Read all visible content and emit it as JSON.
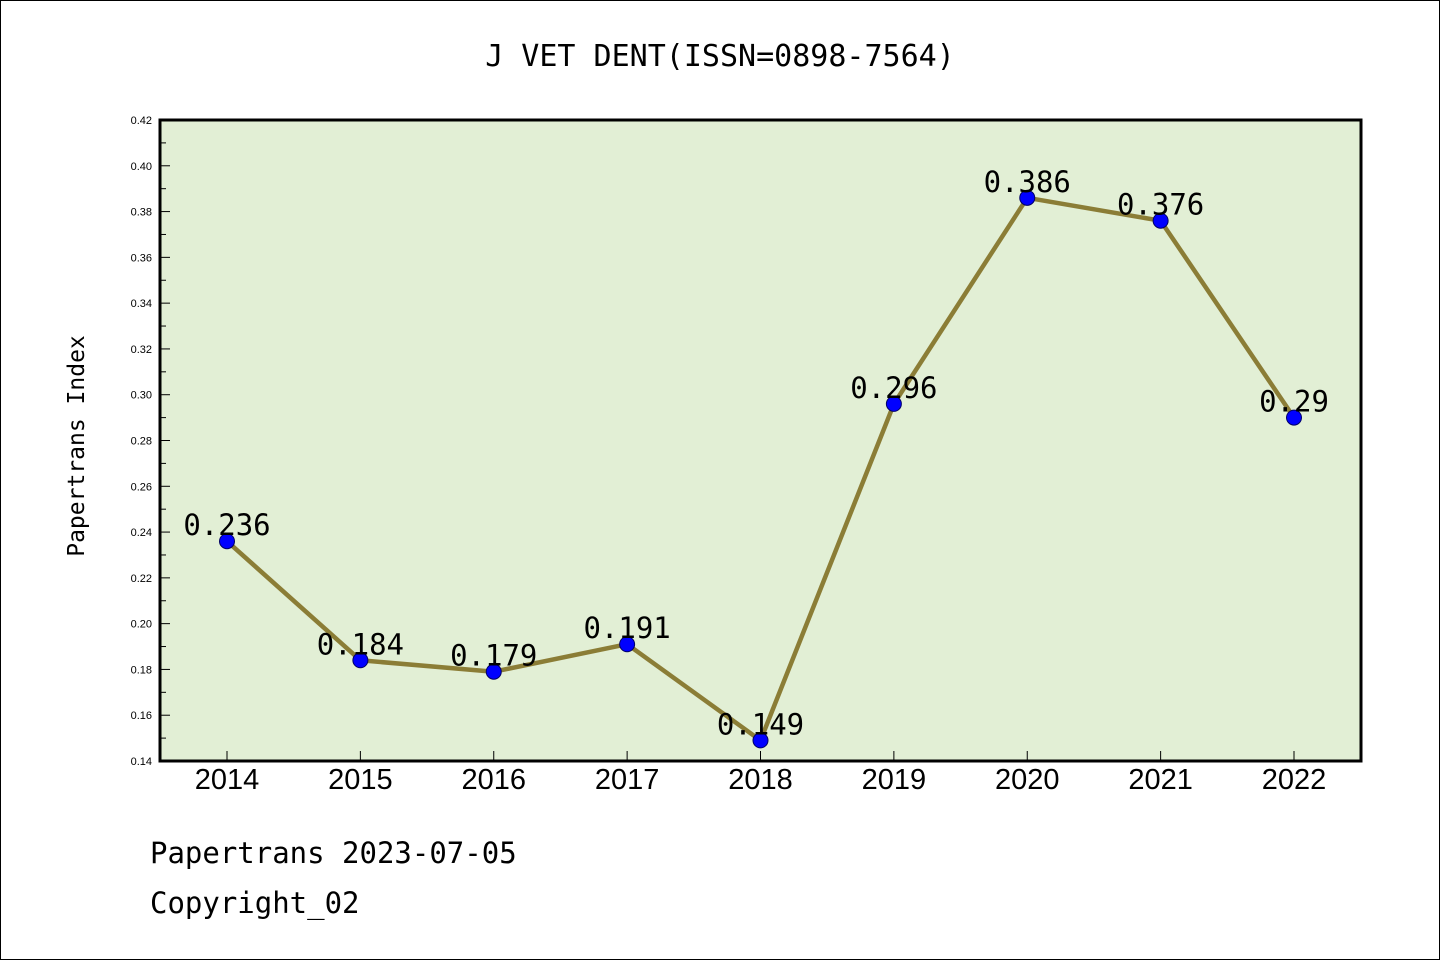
{
  "chart_data": {
    "type": "line",
    "title": "J VET DENT(ISSN=0898-7564)",
    "xlabel": "",
    "ylabel": "Papertrans Index",
    "categories": [
      "2014",
      "2015",
      "2016",
      "2017",
      "2018",
      "2019",
      "2020",
      "2021",
      "2022"
    ],
    "series": [
      {
        "values": [
          0.236,
          0.184,
          0.179,
          0.191,
          0.149,
          0.296,
          0.386,
          0.376,
          0.29
        ],
        "data_labels": [
          "0.236",
          "0.184",
          "0.179",
          "0.191",
          "0.149",
          "0.296",
          "0.386",
          "0.376",
          "0.29"
        ]
      }
    ],
    "ylim": [
      0.14,
      0.42
    ],
    "yticks": [
      "0.14",
      "0.16",
      "0.18",
      "0.20",
      "0.22",
      "0.24",
      "0.26",
      "0.28",
      "0.30",
      "0.32",
      "0.34",
      "0.36",
      "0.38",
      "0.40",
      "0.42"
    ],
    "grid": false,
    "legend": "none",
    "colors": {
      "plot_background": "#e2efd5",
      "line": "#8b7d36",
      "marker": "#0000ff"
    }
  },
  "footer": {
    "line1": "Papertrans 2023-07-05",
    "line2": "Copyright_02"
  }
}
